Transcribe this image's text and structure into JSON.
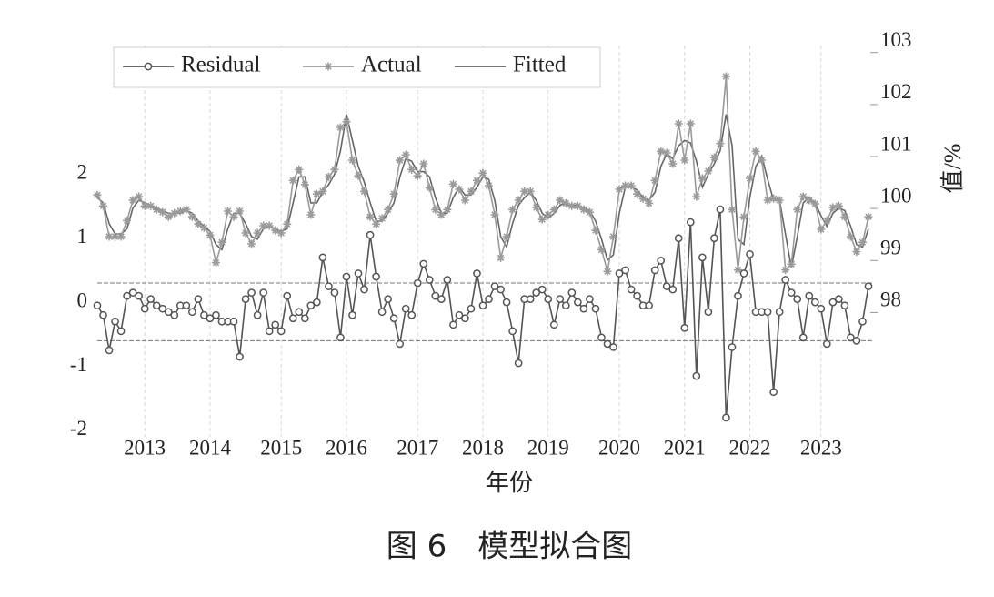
{
  "caption": "图 6　模型拟合图",
  "chart_data": {
    "type": "line",
    "xlabel": "年份",
    "y2label": "值/%",
    "categories": [
      null,
      null,
      null,
      null,
      null,
      null,
      null,
      null,
      "2013",
      null,
      null,
      null,
      null,
      null,
      null,
      null,
      null,
      null,
      null,
      "2014",
      null,
      null,
      null,
      null,
      null,
      null,
      null,
      null,
      null,
      null,
      null,
      "2015",
      null,
      null,
      null,
      null,
      null,
      null,
      null,
      null,
      null,
      null,
      "2016",
      null,
      null,
      null,
      null,
      null,
      null,
      null,
      null,
      null,
      null,
      null,
      "2017",
      null,
      null,
      null,
      null,
      null,
      null,
      null,
      null,
      null,
      null,
      "2018",
      null,
      null,
      null,
      null,
      null,
      null,
      null,
      null,
      null,
      null,
      "2019",
      null,
      null,
      null,
      null,
      null,
      null,
      null,
      null,
      null,
      null,
      null,
      "2020",
      null,
      null,
      null,
      null,
      null,
      null,
      null,
      null,
      null,
      null,
      "2021",
      null,
      null,
      null,
      null,
      null,
      null,
      null,
      null,
      null,
      null,
      "2022",
      null,
      null,
      null,
      null,
      null,
      null,
      null,
      null,
      null,
      null,
      null,
      "2023",
      null,
      null,
      null,
      null,
      null,
      null,
      null,
      null
    ],
    "ylim": [
      -2.1,
      4.15
    ],
    "yticks": [
      -2,
      -1,
      0,
      1,
      2
    ],
    "y2lim": [
      95.4,
      103.1
    ],
    "y2ticks": [
      98,
      99,
      100,
      101,
      102,
      103
    ],
    "hlines": [
      0.3,
      -0.6
    ],
    "grid": true,
    "legend": "top-left",
    "series": [
      {
        "name": "Residual",
        "color": "#555555",
        "marker": "circle",
        "values": [
          -0.05,
          -0.2,
          -0.75,
          -0.3,
          -0.45,
          0.1,
          0.15,
          0.1,
          -0.1,
          0.05,
          -0.05,
          -0.1,
          -0.15,
          -0.2,
          -0.05,
          -0.05,
          -0.15,
          0.05,
          -0.2,
          -0.25,
          -0.2,
          -0.3,
          -0.3,
          -0.3,
          -0.85,
          0.05,
          0.15,
          -0.2,
          0.15,
          -0.45,
          -0.35,
          -0.45,
          0.1,
          -0.25,
          -0.15,
          -0.25,
          -0.05,
          0.0,
          0.7,
          0.25,
          0.15,
          -0.55,
          0.4,
          -0.2,
          0.45,
          0.2,
          1.05,
          0.4,
          -0.15,
          0.05,
          -0.25,
          -0.65,
          -0.1,
          -0.2,
          0.3,
          0.6,
          0.35,
          0.1,
          0.05,
          0.35,
          -0.35,
          -0.2,
          -0.25,
          -0.1,
          0.45,
          -0.05,
          0.05,
          0.25,
          0.2,
          0.0,
          -0.45,
          -0.95,
          0.05,
          0.05,
          0.15,
          0.2,
          0.05,
          -0.35,
          0.05,
          -0.05,
          0.15,
          0.0,
          -0.1,
          0.05,
          -0.1,
          -0.55,
          -0.65,
          -0.7,
          0.45,
          0.5,
          0.2,
          0.1,
          -0.05,
          -0.05,
          0.5,
          0.65,
          0.25,
          0.2,
          1.0,
          -0.4,
          1.25,
          -1.15,
          0.7,
          -0.15,
          1.0,
          1.45,
          -1.8,
          -0.7,
          0.1,
          0.45,
          0.75,
          -0.15,
          -0.15,
          -0.15,
          -1.4,
          -0.15,
          0.35,
          0.15,
          0.05,
          -0.55,
          0.1,
          0.0,
          -0.1,
          -0.65,
          0.0,
          0.05,
          -0.05,
          -0.55,
          -0.6,
          -0.3,
          0.25
        ]
      },
      {
        "name": "Actual",
        "color": "#9a9a9a",
        "marker": "asterisk",
        "axis": "y2",
        "values": [
          100.05,
          99.84,
          99.25,
          99.25,
          99.25,
          99.56,
          99.95,
          100.02,
          99.84,
          99.84,
          99.77,
          99.72,
          99.63,
          99.7,
          99.74,
          99.77,
          99.63,
          99.49,
          99.42,
          99.28,
          98.75,
          99.14,
          99.74,
          99.63,
          99.74,
          99.32,
          99.11,
          99.32,
          99.46,
          99.46,
          99.37,
          99.32,
          99.49,
          100.33,
          100.54,
          100.25,
          99.67,
          100.07,
          100.12,
          100.4,
          100.54,
          101.35,
          101.46,
          100.72,
          100.42,
          100.12,
          99.63,
          99.49,
          99.6,
          99.77,
          100.07,
          100.72,
          100.82,
          100.54,
          100.42,
          100.65,
          100.19,
          99.77,
          99.67,
          99.77,
          100.26,
          100.16,
          99.95,
          100.12,
          100.33,
          100.47,
          100.23,
          99.67,
          98.84,
          99.25,
          99.77,
          99.95,
          100.12,
          100.12,
          99.81,
          99.58,
          99.67,
          99.77,
          99.95,
          99.89,
          99.84,
          99.84,
          99.77,
          99.72,
          99.37,
          99.0,
          98.58,
          99.25,
          100.16,
          100.23,
          100.23,
          100.07,
          99.98,
          99.89,
          100.33,
          100.89,
          100.86,
          100.65,
          101.42,
          100.72,
          101.42,
          100.02,
          100.37,
          100.51,
          100.77,
          101.04,
          102.33,
          99.77,
          98.61,
          99.63,
          100.37,
          100.89,
          100.72,
          99.95,
          99.98,
          99.95,
          98.61,
          98.72,
          99.77,
          100.02,
          99.95,
          99.88,
          99.39,
          99.56,
          99.81,
          99.84,
          99.63,
          99.25,
          98.96,
          99.14,
          99.63
        ]
      },
      {
        "name": "Fitted",
        "color": "#666666",
        "marker": "none",
        "axis": "y2",
        "values": [
          100.0,
          99.9,
          99.5,
          99.3,
          99.3,
          99.4,
          99.8,
          99.95,
          99.9,
          99.85,
          99.8,
          99.75,
          99.7,
          99.7,
          99.7,
          99.75,
          99.7,
          99.55,
          99.45,
          99.35,
          99.1,
          99.0,
          99.4,
          99.7,
          99.7,
          99.5,
          99.25,
          99.2,
          99.4,
          99.45,
          99.4,
          99.35,
          99.4,
          99.9,
          100.4,
          100.4,
          99.9,
          99.9,
          100.1,
          100.25,
          100.45,
          100.9,
          101.6,
          101.1,
          100.6,
          100.3,
          99.9,
          99.55,
          99.55,
          99.7,
          99.9,
          100.4,
          100.75,
          100.7,
          100.5,
          100.5,
          100.4,
          100.0,
          99.7,
          99.7,
          100.0,
          100.2,
          100.05,
          100.05,
          100.2,
          100.4,
          100.35,
          99.95,
          99.25,
          99.05,
          99.5,
          99.85,
          100.0,
          100.1,
          99.95,
          99.7,
          99.6,
          99.7,
          99.85,
          99.9,
          99.85,
          99.85,
          99.8,
          99.75,
          99.55,
          99.2,
          98.8,
          98.9,
          99.7,
          100.2,
          100.2,
          100.15,
          100.0,
          99.95,
          100.1,
          100.6,
          100.85,
          100.75,
          101.0,
          101.1,
          101.05,
          100.7,
          100.2,
          100.45,
          100.65,
          100.9,
          101.6,
          101.0,
          99.2,
          99.1,
          100.0,
          100.6,
          100.8,
          100.35,
          99.95,
          99.95,
          99.3,
          98.65,
          99.25,
          99.9,
          100.0,
          99.9,
          99.65,
          99.45,
          99.7,
          99.8,
          99.75,
          99.45,
          99.1,
          99.05,
          99.4
        ]
      }
    ]
  }
}
